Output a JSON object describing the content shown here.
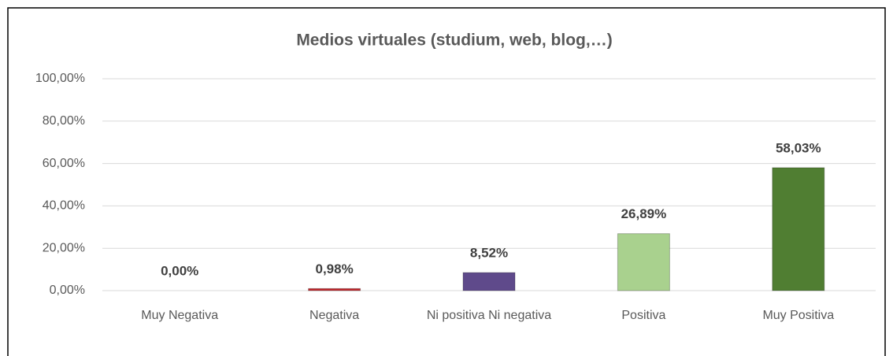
{
  "chart_data": {
    "type": "bar",
    "title": "Medios virtuales (studium, web, blog,…)",
    "categories": [
      "Muy Negativa",
      "Negativa",
      "Ni positiva Ni negativa",
      "Positiva",
      "Muy Positiva"
    ],
    "values": [
      0,
      0.98,
      8.52,
      26.89,
      58.03
    ],
    "value_labels": [
      "0,00%",
      "0,98%",
      "8,52%",
      "26,89%",
      "58,03%"
    ],
    "colors": [
      "#c0504d",
      "#c0272d",
      "#5f4a8b",
      "#a9d18e",
      "#507e32"
    ],
    "ylim": [
      0,
      100
    ],
    "yticks": [
      {
        "value": 0,
        "label": "0,00%"
      },
      {
        "value": 20,
        "label": "20,00%"
      },
      {
        "value": 40,
        "label": "40,00%"
      },
      {
        "value": 60,
        "label": "60,00%"
      },
      {
        "value": 80,
        "label": "80,00%"
      },
      {
        "value": 100,
        "label": "100,00%"
      }
    ],
    "grid": true
  }
}
